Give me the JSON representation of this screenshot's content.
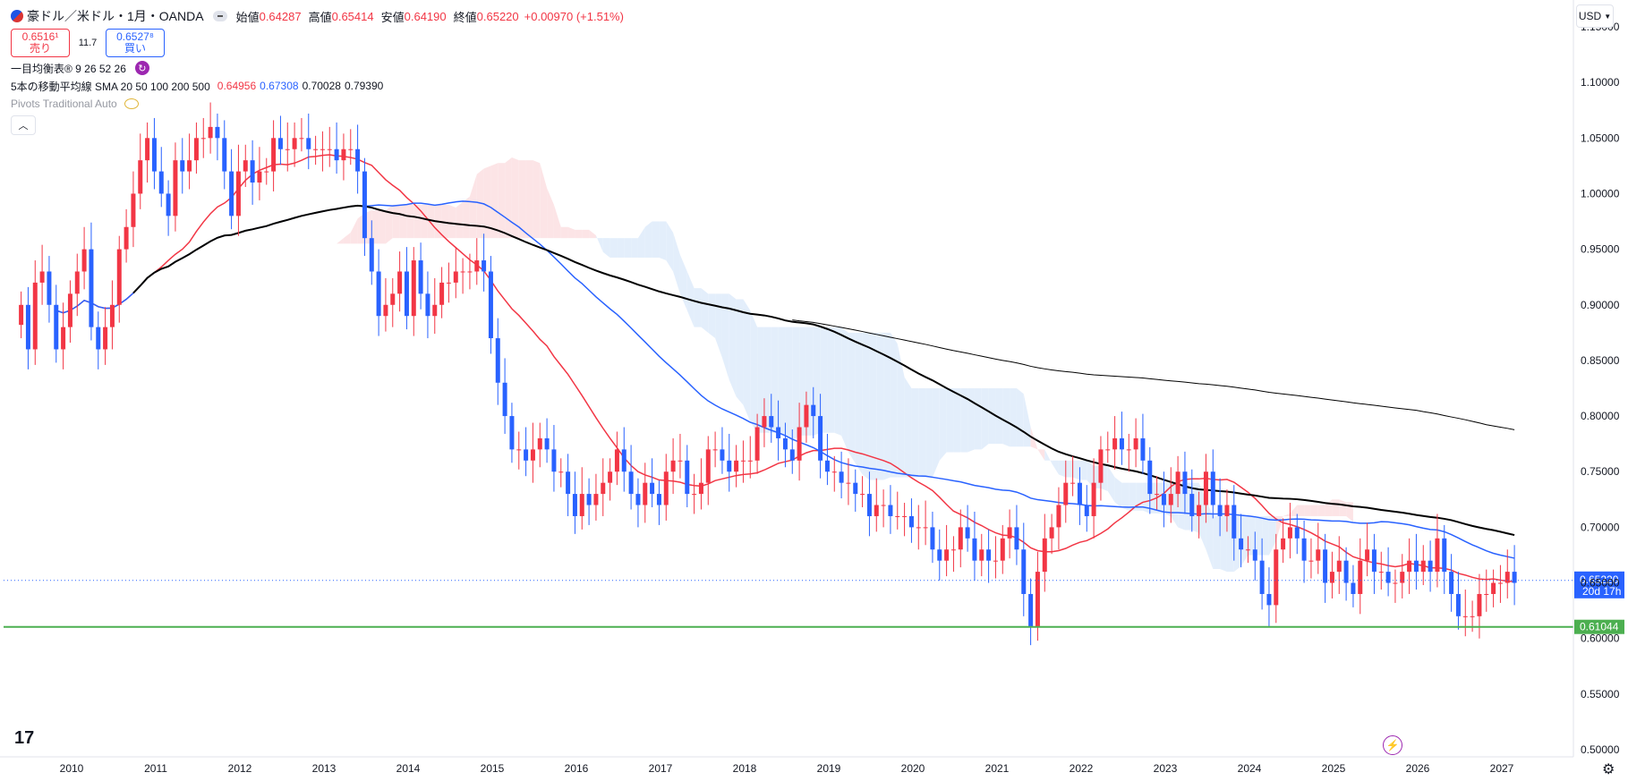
{
  "header": {
    "title": "豪ドル／米ドル・1月・OANDA",
    "open_label": "始値",
    "open_value": "0.64287",
    "high_label": "高値",
    "high_value": "0.65414",
    "low_label": "安値",
    "low_value": "0.64190",
    "close_label": "終値",
    "close_value": "0.65220",
    "change": "+0.00970 (+1.51%)"
  },
  "trade": {
    "sell_price": "0.6516¹",
    "sell_label": "売り",
    "spread": "11.7",
    "buy_price": "0.6527⁸",
    "buy_label": "買い"
  },
  "indicators": {
    "ichimoku": "一目均衡表® 9 26 52 26",
    "sma_label": "5本の移動平均線 SMA 20 50 100 200 500",
    "sma_values": [
      {
        "value": "0.64956",
        "color": "#f23645"
      },
      {
        "value": "0.67308",
        "color": "#2962ff"
      },
      {
        "value": "0.70028",
        "color": "#000000"
      },
      {
        "value": "0.79390",
        "color": "#000000"
      }
    ],
    "pivots": "Pivots Traditional Auto"
  },
  "currency": "USD",
  "colors": {
    "up": "#f23645",
    "down": "#2962ff",
    "sma20": "#f23645",
    "sma50": "#2962ff",
    "sma100": "#000000",
    "sma200": "#000000",
    "support": "#4caf50",
    "cloud_bull": "#fce4e6",
    "cloud_bear": "#e3eefb"
  },
  "chart_data": {
    "type": "candlestick",
    "interval": "1M",
    "y_ticks": [
      "0.50000",
      "0.55000",
      "0.60000",
      "0.65000",
      "0.70000",
      "0.75000",
      "0.80000",
      "0.85000",
      "0.90000",
      "0.95000",
      "1.00000",
      "1.05000",
      "1.10000",
      "1.15000"
    ],
    "ylim": [
      0.5,
      1.15
    ],
    "x_ticks": [
      "2010",
      "2011",
      "2012",
      "2013",
      "2014",
      "2015",
      "2016",
      "2017",
      "2018",
      "2019",
      "2020",
      "2021",
      "2022",
      "2023",
      "2024",
      "2025",
      "2026",
      "2027"
    ],
    "last_price": {
      "value": "0.65220",
      "countdown": "20d 17h"
    },
    "support_level": {
      "value": "0.61044"
    },
    "closes": [
      0.9,
      0.86,
      0.92,
      0.93,
      0.9,
      0.86,
      0.88,
      0.91,
      0.93,
      0.95,
      0.88,
      0.86,
      0.88,
      0.9,
      0.95,
      0.97,
      1.0,
      1.03,
      1.05,
      1.02,
      1.0,
      0.98,
      1.03,
      1.02,
      1.03,
      1.05,
      1.05,
      1.06,
      1.05,
      1.02,
      0.98,
      1.02,
      1.03,
      1.01,
      1.02,
      1.02,
      1.05,
      1.04,
      1.04,
      1.05,
      1.05,
      1.04,
      1.04,
      1.04,
      1.04,
      1.03,
      1.04,
      1.04,
      1.02,
      0.96,
      0.93,
      0.89,
      0.9,
      0.91,
      0.93,
      0.89,
      0.94,
      0.91,
      0.89,
      0.9,
      0.92,
      0.92,
      0.93,
      0.93,
      0.93,
      0.94,
      0.93,
      0.87,
      0.83,
      0.8,
      0.77,
      0.77,
      0.76,
      0.77,
      0.78,
      0.77,
      0.75,
      0.75,
      0.73,
      0.71,
      0.73,
      0.72,
      0.73,
      0.74,
      0.75,
      0.77,
      0.75,
      0.73,
      0.72,
      0.74,
      0.73,
      0.72,
      0.75,
      0.76,
      0.76,
      0.73,
      0.73,
      0.74,
      0.77,
      0.77,
      0.76,
      0.75,
      0.76,
      0.76,
      0.76,
      0.79,
      0.8,
      0.79,
      0.78,
      0.77,
      0.76,
      0.79,
      0.81,
      0.8,
      0.76,
      0.75,
      0.75,
      0.74,
      0.74,
      0.73,
      0.73,
      0.71,
      0.72,
      0.72,
      0.71,
      0.71,
      0.71,
      0.7,
      0.7,
      0.7,
      0.68,
      0.67,
      0.68,
      0.68,
      0.7,
      0.69,
      0.67,
      0.68,
      0.67,
      0.67,
      0.69,
      0.7,
      0.68,
      0.64,
      0.61,
      0.66,
      0.69,
      0.7,
      0.72,
      0.74,
      0.74,
      0.72,
      0.71,
      0.74,
      0.77,
      0.77,
      0.78,
      0.77,
      0.77,
      0.78,
      0.76,
      0.73,
      0.73,
      0.72,
      0.73,
      0.75,
      0.73,
      0.71,
      0.72,
      0.75,
      0.72,
      0.71,
      0.72,
      0.69,
      0.68,
      0.68,
      0.67,
      0.64,
      0.63,
      0.68,
      0.69,
      0.7,
      0.69,
      0.67,
      0.67,
      0.68,
      0.65,
      0.66,
      0.67,
      0.65,
      0.64,
      0.67,
      0.68,
      0.66,
      0.66,
      0.65,
      0.65,
      0.66,
      0.67,
      0.66,
      0.67,
      0.66,
      0.69,
      0.66,
      0.64,
      0.62,
      0.62,
      0.62,
      0.64,
      0.64,
      0.65,
      0.65,
      0.66,
      0.65
    ]
  }
}
